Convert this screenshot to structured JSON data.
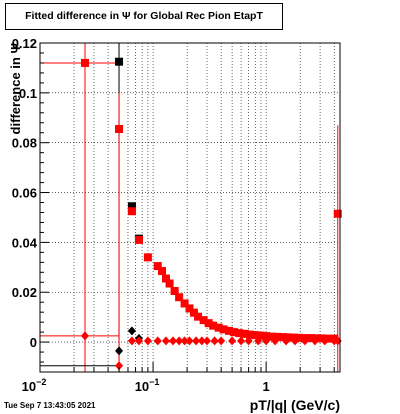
{
  "title": "Fitted difference in  Ψ  for Global Rec Pion EtapT",
  "timestamp": "Tue Sep  7 13:43:05 2021",
  "chart_data": {
    "type": "scatter",
    "title": "Fitted difference in  Ψ  for Global Rec Pion EtapT",
    "xlabel": "pT/|q| (GeV/c)",
    "ylabel": "difference in  Ψ",
    "xscale": "log",
    "xlim": [
      0.01,
      4.5
    ],
    "ylim": [
      -0.012,
      0.12
    ],
    "grid": true,
    "y_ticks": [
      {
        "value": 0,
        "label": "0"
      },
      {
        "value": 0.02,
        "label": "0.02"
      },
      {
        "value": 0.04,
        "label": "0.04"
      },
      {
        "value": 0.06,
        "label": "0.06"
      },
      {
        "value": 0.08,
        "label": "0.08"
      },
      {
        "value": 0.1,
        "label": "0.1"
      },
      {
        "value": 0.12,
        "label": "0.12"
      }
    ],
    "x_ticks": [
      {
        "value": 0.01,
        "label": "10",
        "sup": "−2"
      },
      {
        "value": 0.1,
        "label": "10",
        "sup": "−1"
      },
      {
        "value": 1,
        "label": "1",
        "sup": ""
      }
    ],
    "series": [
      {
        "marker": "square",
        "color": "#000000",
        "x": [
          0.05,
          0.065,
          0.075
        ],
        "y": [
          0.1125,
          0.0545,
          0.0415
        ]
      },
      {
        "marker": "diamond",
        "color": "#000000",
        "x": [
          0.05,
          0.065,
          0.075
        ],
        "y": [
          -0.0035,
          0.0045,
          0.0015
        ]
      },
      {
        "marker": "square",
        "color": "#ff0000",
        "x": [
          0.025,
          0.05,
          0.065,
          0.075,
          0.09,
          0.11,
          0.12,
          0.13,
          0.14,
          0.155,
          0.17,
          0.19,
          0.21,
          0.23,
          0.25,
          0.28,
          0.31,
          0.34,
          0.38,
          0.42,
          0.47,
          0.52,
          0.58,
          0.65,
          0.72,
          0.8,
          0.9,
          1.0,
          1.12,
          1.25,
          1.4,
          1.55,
          1.75,
          1.95,
          2.2,
          2.5,
          2.8,
          3.1,
          3.5,
          4.0,
          4.3
        ],
        "y": [
          0.112,
          0.0855,
          0.0525,
          0.041,
          0.034,
          0.0305,
          0.0285,
          0.0255,
          0.0235,
          0.0205,
          0.018,
          0.0155,
          0.0135,
          0.0118,
          0.0102,
          0.0088,
          0.0076,
          0.0066,
          0.0058,
          0.0051,
          0.0045,
          0.004,
          0.0036,
          0.0033,
          0.003,
          0.0028,
          0.0026,
          0.0024,
          0.0022,
          0.0021,
          0.002,
          0.0019,
          0.0018,
          0.0017,
          0.0016,
          0.0016,
          0.0015,
          0.0015,
          0.0014,
          0.0014,
          0.0515
        ]
      },
      {
        "marker": "diamond",
        "color": "#ff0000",
        "x": [
          0.025,
          0.05,
          0.065,
          0.075,
          0.09,
          0.11,
          0.13,
          0.15,
          0.17,
          0.19,
          0.21,
          0.24,
          0.27,
          0.3,
          0.35,
          0.4,
          0.5,
          0.6,
          0.7,
          0.85,
          1.0,
          1.2,
          1.5,
          1.8,
          2.2,
          2.7,
          3.3,
          4.0,
          4.3
        ],
        "y": [
          0.0025,
          -0.0095,
          0.0005,
          0.0005,
          0.0005,
          0.0005,
          0.0005,
          0.0005,
          0.0005,
          0.0005,
          0.0005,
          0.0005,
          0.0005,
          0.0005,
          0.0005,
          0.0005,
          0.0005,
          0.0005,
          0.0005,
          0.0005,
          0.0005,
          0.0005,
          0.0005,
          0.0005,
          0.0005,
          0.0005,
          0.0005,
          0.0005,
          0.0005
        ]
      }
    ]
  }
}
